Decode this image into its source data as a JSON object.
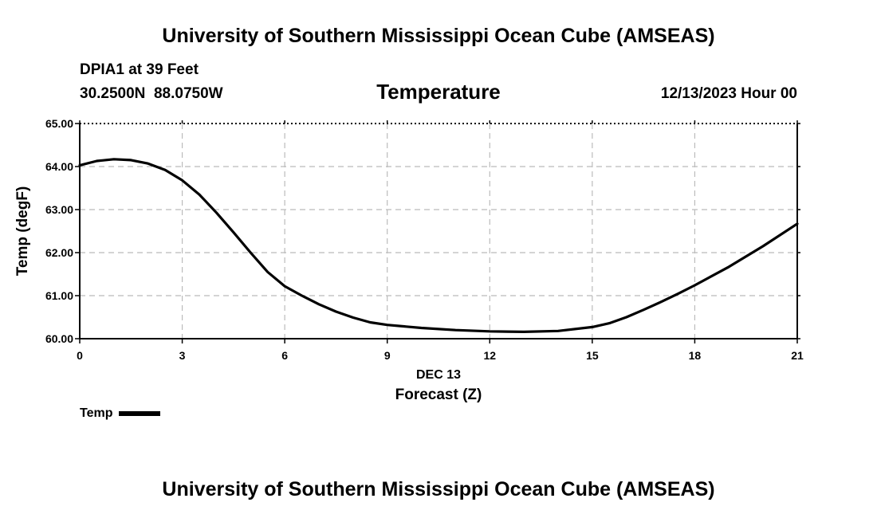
{
  "header": {
    "title_top": "University of Southern Mississippi Ocean Cube (AMSEAS)",
    "title_bottom": "University of Southern Mississippi Ocean Cube (AMSEAS)",
    "station": "DPIA1 at 39 Feet",
    "coords": "30.2500N  88.0750W",
    "datetime": "12/13/2023 Hour 00"
  },
  "chart_data": {
    "type": "line",
    "title": "Temperature",
    "xlabel": "Forecast (Z)",
    "x_sublabel": "DEC 13",
    "ylabel": "Temp (degF)",
    "xlim": [
      0,
      21
    ],
    "ylim": [
      60,
      65
    ],
    "xticks": [
      0,
      3,
      6,
      9,
      12,
      15,
      18,
      21
    ],
    "yticks": [
      "60.00",
      "61.00",
      "62.00",
      "63.00",
      "64.00",
      "65.00"
    ],
    "grid": true,
    "legend": "bottom-left",
    "series": [
      {
        "name": "Temp",
        "x": [
          0,
          0.5,
          1,
          1.5,
          2,
          2.5,
          3,
          3.5,
          4,
          4.5,
          5,
          5.5,
          6,
          6.5,
          7,
          7.5,
          8,
          8.5,
          9,
          10,
          11,
          12,
          13,
          14,
          15,
          15.5,
          16,
          16.5,
          17,
          17.5,
          18,
          19,
          20,
          21
        ],
        "y": [
          64.03,
          64.13,
          64.17,
          64.15,
          64.07,
          63.92,
          63.68,
          63.35,
          62.93,
          62.47,
          62.0,
          61.55,
          61.22,
          61.0,
          60.8,
          60.63,
          60.49,
          60.38,
          60.32,
          60.25,
          60.2,
          60.17,
          60.16,
          60.18,
          60.27,
          60.36,
          60.5,
          60.67,
          60.85,
          61.04,
          61.24,
          61.67,
          62.15,
          62.67
        ]
      }
    ]
  }
}
